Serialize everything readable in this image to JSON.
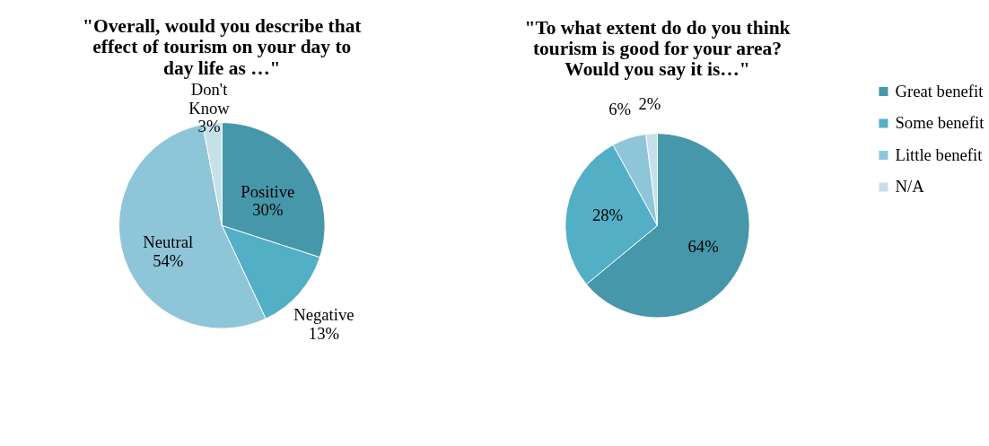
{
  "chart_data": [
    {
      "type": "pie",
      "title": "\"Overall, would you describe that effect of tourism on your day to day life as …\"",
      "categories": [
        "Positive",
        "Negative",
        "Neutral",
        "Don't Know"
      ],
      "values": [
        30,
        13,
        54,
        3
      ],
      "value_labels": [
        "30%",
        "13%",
        "54%",
        "3%"
      ],
      "colors": [
        "#4797aa",
        "#52afc6",
        "#8fc5d8",
        "#c6e0ea"
      ],
      "legend": false
    },
    {
      "type": "pie",
      "title": "\"To what extent do do you think tourism is good for your area? Would you say it is…\"",
      "categories": [
        "Great benefit",
        "Some benefit",
        "Little benefit",
        "N/A"
      ],
      "values": [
        64,
        28,
        6,
        2
      ],
      "value_labels": [
        "64%",
        "28%",
        "6%",
        "2%"
      ],
      "colors": [
        "#4797aa",
        "#52afc6",
        "#8fc5d8",
        "#c6e0ea"
      ],
      "legend": "right"
    }
  ]
}
